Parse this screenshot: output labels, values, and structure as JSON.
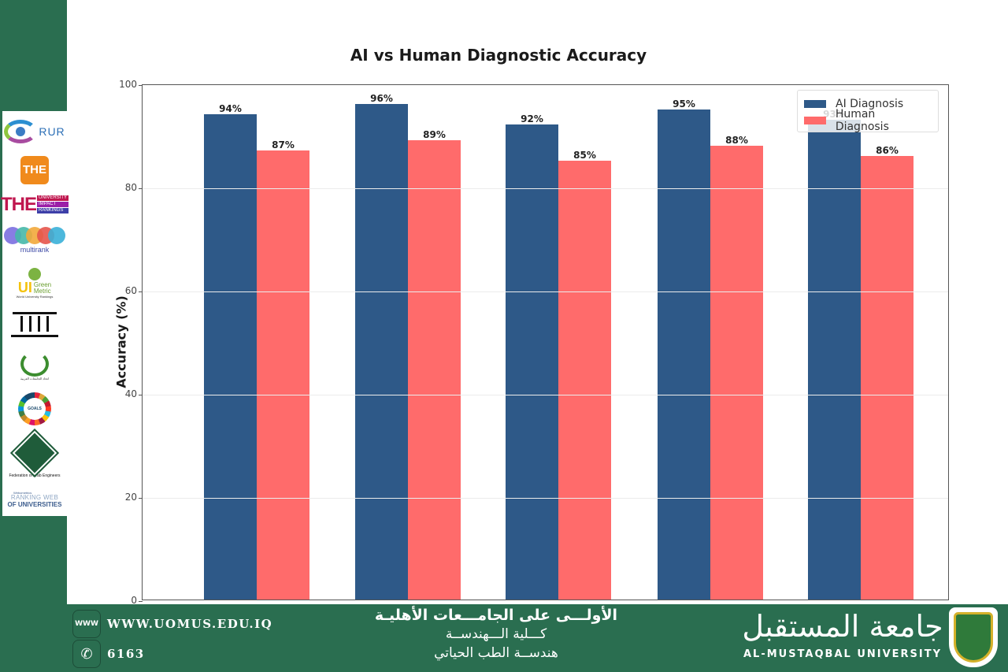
{
  "chart_data": {
    "type": "bar",
    "title": "AI vs Human Diagnostic Accuracy",
    "xlabel": "",
    "ylabel": "Accuracy (%)",
    "ylim": [
      0,
      100
    ],
    "yticks": [
      "0",
      "20",
      "40",
      "60",
      "80",
      "100"
    ],
    "categories": [
      "",
      "",
      "",
      "",
      ""
    ],
    "series": [
      {
        "name": "AI Diagnosis",
        "color": "#2e5988",
        "values": [
          94,
          96,
          92,
          95,
          93
        ],
        "labels": [
          "94%",
          "96%",
          "92%",
          "95%",
          "93%"
        ]
      },
      {
        "name": "Human Diagnosis",
        "color": "#ff6b6b",
        "values": [
          87,
          89,
          85,
          88,
          86
        ],
        "labels": [
          "87%",
          "89%",
          "85%",
          "88%",
          "86%"
        ]
      }
    ],
    "grid": true,
    "legend_position": "upper right"
  },
  "sidebar": {
    "logos": [
      {
        "name": "RUR",
        "text": "RUR"
      },
      {
        "name": "THE",
        "text": "THE"
      },
      {
        "name": "THE Impact Rankings",
        "big": "THE",
        "lines": [
          "UNIVERSITY",
          "IMPACT",
          "RANKINGS"
        ]
      },
      {
        "name": "Multirank",
        "text": "multirank"
      },
      {
        "name": "UI GreenMetric",
        "ui": "UI",
        "green": "Green",
        "metric": "Metric",
        "sub": "World University Rankings"
      },
      {
        "name": "Pillars",
        "text": ""
      },
      {
        "name": "Association of Arab Universities",
        "text": "اتحاد الجامعات العربية"
      },
      {
        "name": "Sustainable Development Goals",
        "text": "SUSTAINABLE DEVELOPMENT GOALS"
      },
      {
        "name": "Federation of Arab Engineers",
        "arabic": "إتحاد المهندسين العرب",
        "text": "Federation of Arab Engineers"
      },
      {
        "name": "Webometrics",
        "small": "Webometrics",
        "l1": "RANKING WEB",
        "l2": "OF UNIVERSITIES"
      }
    ]
  },
  "footer": {
    "website_icon": "WWW",
    "website": "WWW.UOMUS.EDU.IQ",
    "phone_icon": "✆",
    "phone": "6163",
    "line1": "الأولـــى على الجامـــعات الأهليـة",
    "line2": "كـــلية الـــهندســة",
    "line3": "هندســة الطب الحياتي",
    "brand_arabic": "جامعة المستقبل",
    "brand_latin": "AL-MUSTAQBAL UNIVERSITY"
  },
  "colors": {
    "brand_green": "#2a6e50",
    "ai_bar": "#2e5988",
    "human_bar": "#ff6b6b"
  }
}
